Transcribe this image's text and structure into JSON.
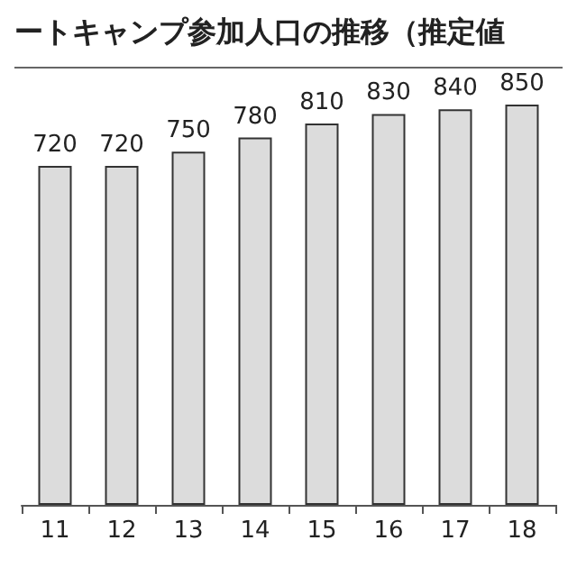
{
  "chart_data": {
    "type": "bar",
    "title": "ートキャンプ参加人口の推移（推定値",
    "categories": [
      "11",
      "12",
      "13",
      "14",
      "15",
      "16",
      "17",
      "18"
    ],
    "values": [
      720,
      720,
      750,
      780,
      810,
      830,
      840,
      850
    ],
    "color": "#dcdcdc",
    "data_labels": true,
    "grid": false
  }
}
